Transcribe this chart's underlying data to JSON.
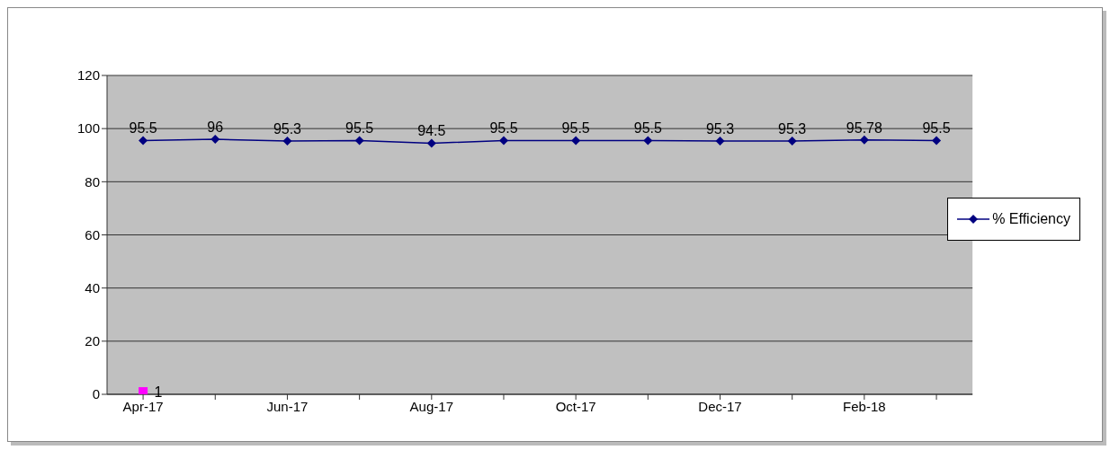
{
  "chart_data": {
    "type": "line",
    "categories": [
      "Apr-17",
      null,
      "Jun-17",
      null,
      "Aug-17",
      null,
      "Oct-17",
      null,
      "Dec-17",
      null,
      "Feb-18",
      null
    ],
    "series": [
      {
        "name": "% Efficiency",
        "color": "#000080",
        "values": [
          95.5,
          96,
          95.3,
          95.5,
          94.5,
          95.5,
          95.5,
          95.5,
          95.3,
          95.3,
          95.78,
          95.5
        ],
        "marker": "diamond"
      },
      {
        "type": "scatter",
        "color": "#ff00ff",
        "values": [
          1,
          null,
          null,
          null,
          null,
          null,
          null,
          null,
          null,
          null,
          null,
          null
        ],
        "marker": "square"
      }
    ],
    "ylim": [
      0,
      120
    ],
    "yticks": [
      0,
      20,
      40,
      60,
      80,
      100,
      120
    ],
    "grid": "y",
    "legend": "right",
    "data_labels": true,
    "line_style": "solid"
  }
}
